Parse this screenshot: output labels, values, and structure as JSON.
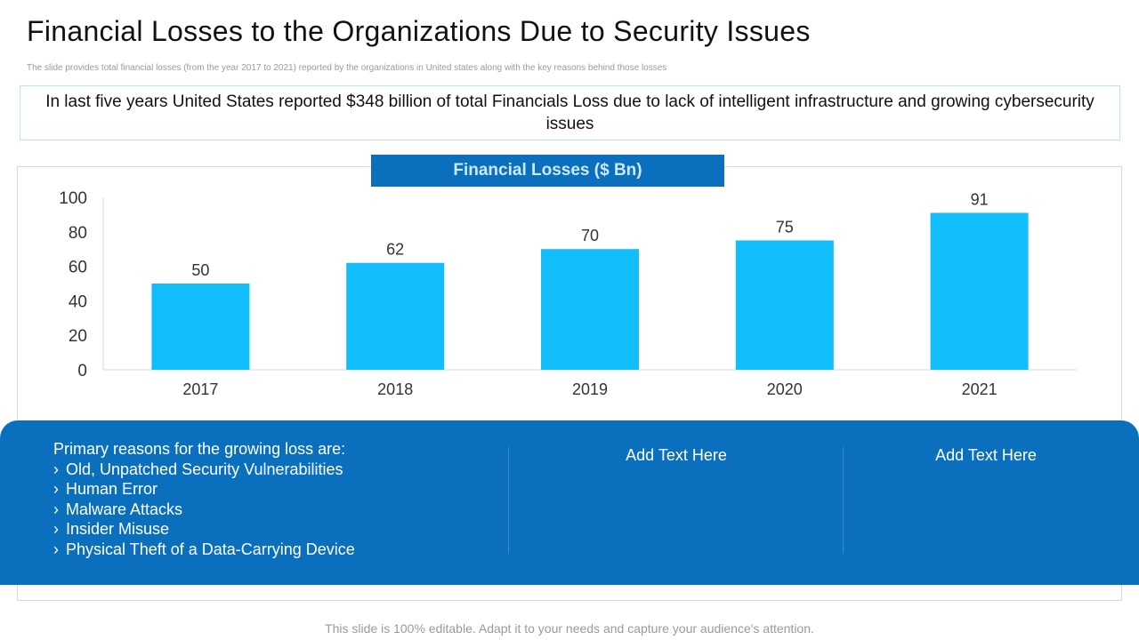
{
  "slide": {
    "title": "Financial Losses to the Organizations Due to Security Issues",
    "subtitle": "The slide provides total financial losses (from the year 2017 to 2021) reported by the organizations in United states along with the key reasons behind those losses",
    "callout": "In last five years United  States reported  $348 billion of total Financials Loss due to lack of intelligent  infrastructure and growing cybersecurity issues",
    "footer": "This slide is 100% editable. Adapt it to your needs and capture your audience's attention."
  },
  "chart_data": {
    "type": "bar",
    "title": "Financial Losses ($ Bn)",
    "categories": [
      "2017",
      "2018",
      "2019",
      "2020",
      "2021"
    ],
    "values": [
      50,
      62,
      70,
      75,
      91
    ],
    "xlabel": "",
    "ylabel": "",
    "ylim": [
      0,
      100
    ],
    "yticks": [
      0,
      20,
      40,
      60,
      80,
      100
    ],
    "grid": false,
    "bar_color": "#12bdfb"
  },
  "reasons": {
    "heading": "Primary reasons for the growing loss are:",
    "bullet_glyph": "›",
    "items": [
      "Old, Unpatched Security Vulnerabilities",
      "Human Error",
      "Malware Attacks",
      "Insider Misuse",
      "Physical Theft of a Data-Carrying Device"
    ]
  },
  "placeholders": [
    "Add Text Here",
    "Add Text Here"
  ],
  "colors": {
    "accent_blue": "#0a6fbd",
    "bar_blue": "#12bdfb"
  }
}
